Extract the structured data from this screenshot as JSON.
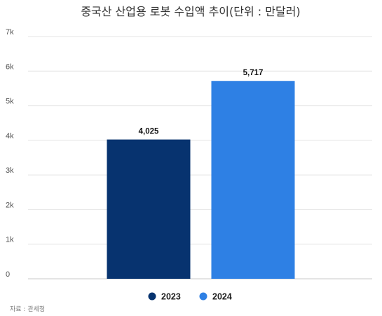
{
  "chart_data": {
    "type": "bar",
    "title": "중국산 산업용 로봇 수입액 추이(단위 : 만달러)",
    "categories": [
      "2023",
      "2024"
    ],
    "series": [
      {
        "name": "2023",
        "values": [
          4025,
          null
        ],
        "labels": [
          "4,025",
          ""
        ],
        "color": "#07336f"
      },
      {
        "name": "2024",
        "values": [
          null,
          5717
        ],
        "labels": [
          "",
          "5,717"
        ],
        "color": "#2e80e4"
      }
    ],
    "ylim": [
      0,
      7000
    ],
    "yticks": [
      0,
      1000,
      2000,
      3000,
      4000,
      5000,
      6000,
      7000
    ],
    "ytick_labels": [
      "0",
      "1k",
      "2k",
      "3k",
      "4k",
      "5k",
      "6k",
      "7k"
    ],
    "grid": true,
    "legend_position": "bottom"
  },
  "source_text": "자료 : 관세청"
}
